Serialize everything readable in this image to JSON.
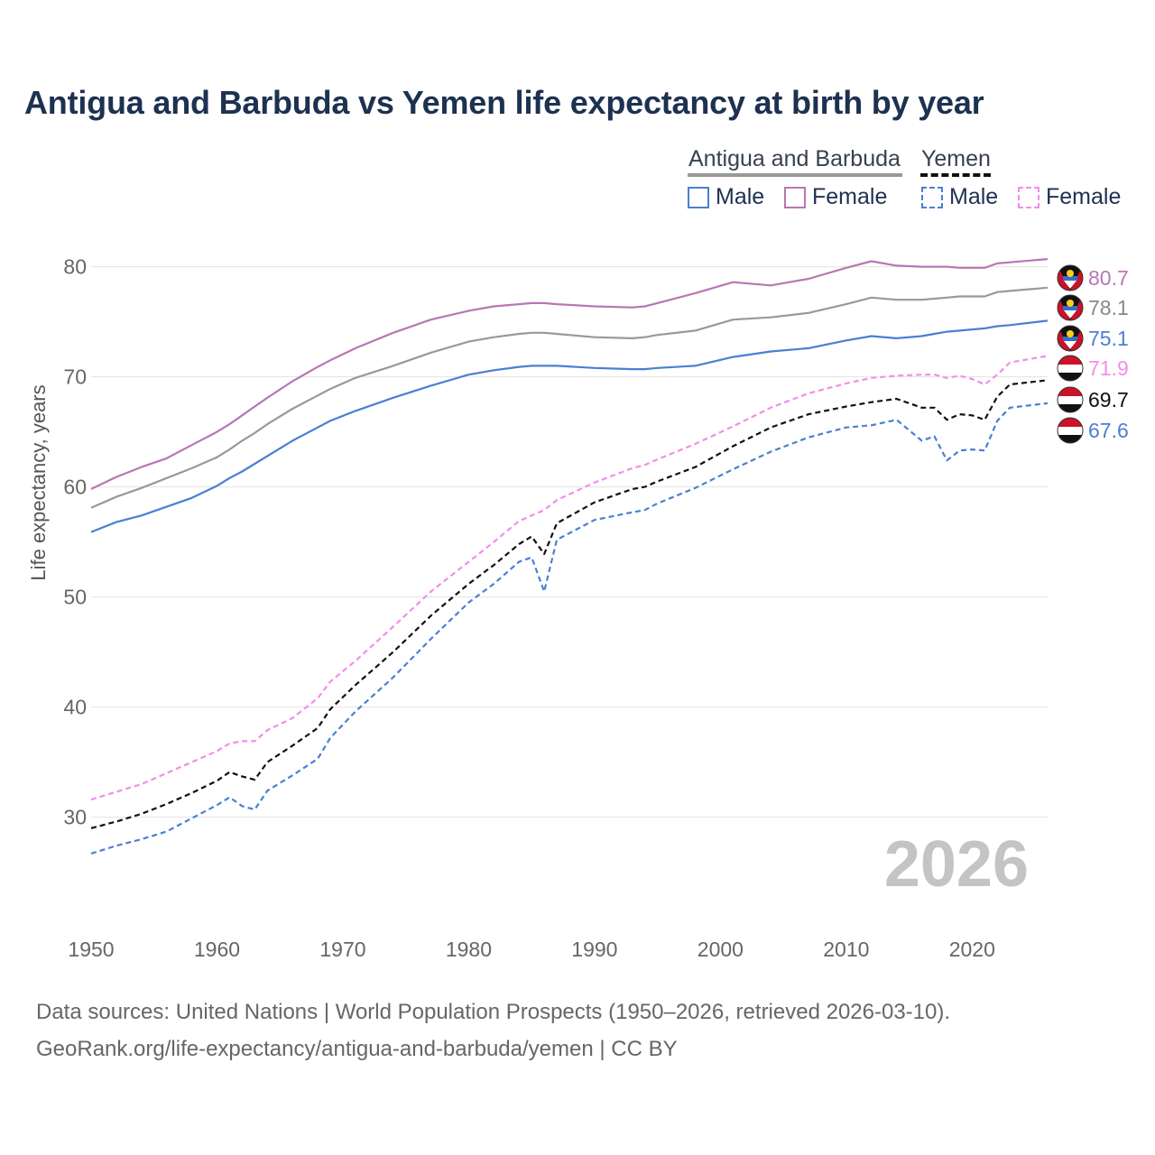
{
  "chart_data": {
    "type": "line",
    "title": "Antigua and Barbuda vs Yemen life expectancy at birth by year",
    "ylabel": "Life expectancy, years",
    "xlabel": "",
    "xlim": [
      1950,
      2026
    ],
    "ylim": [
      23,
      83
    ],
    "x_ticks": [
      1950,
      1960,
      1970,
      1980,
      1990,
      2000,
      2010,
      2020
    ],
    "y_ticks": [
      30,
      40,
      50,
      60,
      70,
      80
    ],
    "year_watermark": "2026",
    "x": [
      1950,
      1952,
      1954,
      1956,
      1958,
      1960,
      1961,
      1962,
      1963,
      1964,
      1966,
      1968,
      1969,
      1971,
      1974,
      1977,
      1980,
      1982,
      1984,
      1985,
      1986,
      1987,
      1990,
      1993,
      1994,
      1995,
      1998,
      2001,
      2004,
      2007,
      2010,
      2012,
      2014,
      2016,
      2017,
      2018,
      2019,
      2020,
      2021,
      2022,
      2023,
      2026
    ],
    "series": [
      {
        "name": "Antigua and Barbuda Female",
        "country": "Antigua and Barbuda",
        "sex": "Female",
        "color": "#b877b3",
        "dashed": false,
        "end_label": "80.7",
        "values": [
          59.8,
          60.9,
          61.8,
          62.6,
          63.8,
          65.0,
          65.7,
          66.5,
          67.3,
          68.1,
          69.6,
          70.9,
          71.5,
          72.6,
          74.0,
          75.2,
          76.0,
          76.4,
          76.6,
          76.7,
          76.7,
          76.6,
          76.4,
          76.3,
          76.4,
          76.7,
          77.6,
          78.6,
          78.3,
          78.9,
          79.9,
          80.5,
          80.1,
          80.0,
          80.0,
          80.0,
          79.9,
          79.9,
          79.9,
          80.3,
          80.4,
          80.7
        ]
      },
      {
        "name": "Antigua and Barbuda",
        "country": "Antigua and Barbuda",
        "sex": "Both",
        "color": "#999999",
        "dashed": false,
        "end_label": "78.1",
        "values": [
          58.1,
          59.1,
          59.9,
          60.8,
          61.7,
          62.7,
          63.4,
          64.2,
          64.9,
          65.7,
          67.1,
          68.3,
          68.9,
          69.9,
          71.0,
          72.2,
          73.2,
          73.6,
          73.9,
          74.0,
          74.0,
          73.9,
          73.6,
          73.5,
          73.6,
          73.8,
          74.2,
          75.2,
          75.4,
          75.8,
          76.6,
          77.2,
          77.0,
          77.0,
          77.1,
          77.2,
          77.3,
          77.3,
          77.3,
          77.7,
          77.8,
          78.1
        ]
      },
      {
        "name": "Antigua and Barbuda Male",
        "country": "Antigua and Barbuda",
        "sex": "Male",
        "color": "#4a7fd4",
        "dashed": false,
        "end_label": "75.1",
        "values": [
          55.9,
          56.8,
          57.4,
          58.2,
          59.0,
          60.1,
          60.8,
          61.4,
          62.1,
          62.8,
          64.2,
          65.4,
          66.0,
          66.9,
          68.1,
          69.2,
          70.2,
          70.6,
          70.9,
          71.0,
          71.0,
          71.0,
          70.8,
          70.7,
          70.7,
          70.8,
          71.0,
          71.8,
          72.3,
          72.6,
          73.3,
          73.7,
          73.5,
          73.7,
          73.9,
          74.1,
          74.2,
          74.3,
          74.4,
          74.6,
          74.7,
          75.1
        ]
      },
      {
        "name": "Yemen Female",
        "country": "Yemen",
        "sex": "Female",
        "color": "#f28ee8",
        "dashed": true,
        "end_label": "71.9",
        "values": [
          31.6,
          32.3,
          33.0,
          34.0,
          35.0,
          36.0,
          36.7,
          36.9,
          36.9,
          37.9,
          39.0,
          40.8,
          42.3,
          44.2,
          47.3,
          50.5,
          53.2,
          55.0,
          56.9,
          57.4,
          57.9,
          58.8,
          60.4,
          61.7,
          62.0,
          62.5,
          63.9,
          65.5,
          67.2,
          68.5,
          69.4,
          69.9,
          70.1,
          70.2,
          70.2,
          69.9,
          70.1,
          69.8,
          69.3,
          70.2,
          71.3,
          71.9
        ]
      },
      {
        "name": "Yemen",
        "country": "Yemen",
        "sex": "Both",
        "color": "#111111",
        "dashed": true,
        "end_label": "69.7",
        "values": [
          29.0,
          29.6,
          30.3,
          31.2,
          32.2,
          33.3,
          34.1,
          33.7,
          33.4,
          35.0,
          36.5,
          38.1,
          39.8,
          42.0,
          45.0,
          48.3,
          51.2,
          52.9,
          54.8,
          55.5,
          53.9,
          56.7,
          58.6,
          59.8,
          60.0,
          60.5,
          61.8,
          63.7,
          65.4,
          66.6,
          67.3,
          67.7,
          68.0,
          67.2,
          67.2,
          66.1,
          66.6,
          66.5,
          66.1,
          68.2,
          69.3,
          69.7
        ]
      },
      {
        "name": "Yemen Male",
        "country": "Yemen",
        "sex": "Male",
        "color": "#4a7fd4",
        "dashed": true,
        "end_label": "67.6",
        "values": [
          26.7,
          27.4,
          28.0,
          28.7,
          29.9,
          31.1,
          31.8,
          31.0,
          30.7,
          32.4,
          33.8,
          35.3,
          37.2,
          39.6,
          42.7,
          46.2,
          49.5,
          51.2,
          53.2,
          53.6,
          50.5,
          55.2,
          57.0,
          57.7,
          57.9,
          58.5,
          59.9,
          61.6,
          63.2,
          64.5,
          65.4,
          65.6,
          66.1,
          64.2,
          64.6,
          62.4,
          63.3,
          63.4,
          63.3,
          66.0,
          67.2,
          67.6
        ]
      }
    ],
    "legend": {
      "countries": [
        {
          "label": "Antigua and Barbuda",
          "color": "#999999"
        },
        {
          "label": "Yemen",
          "color": "#111111"
        }
      ],
      "items": [
        {
          "label": "Male",
          "color": "#4a7fd4"
        },
        {
          "label": "Female",
          "color": "#b877b3"
        },
        {
          "label": "Male",
          "color": "#4a7fd4"
        },
        {
          "label": "Female",
          "color": "#f28ee8"
        }
      ]
    },
    "footer": {
      "line1": "Data sources: United Nations | World Population Prospects (1950–2026, retrieved 2026-03-10).",
      "line2": "GeoRank.org/life-expectancy/antigua-and-barbuda/yemen | CC BY"
    }
  }
}
